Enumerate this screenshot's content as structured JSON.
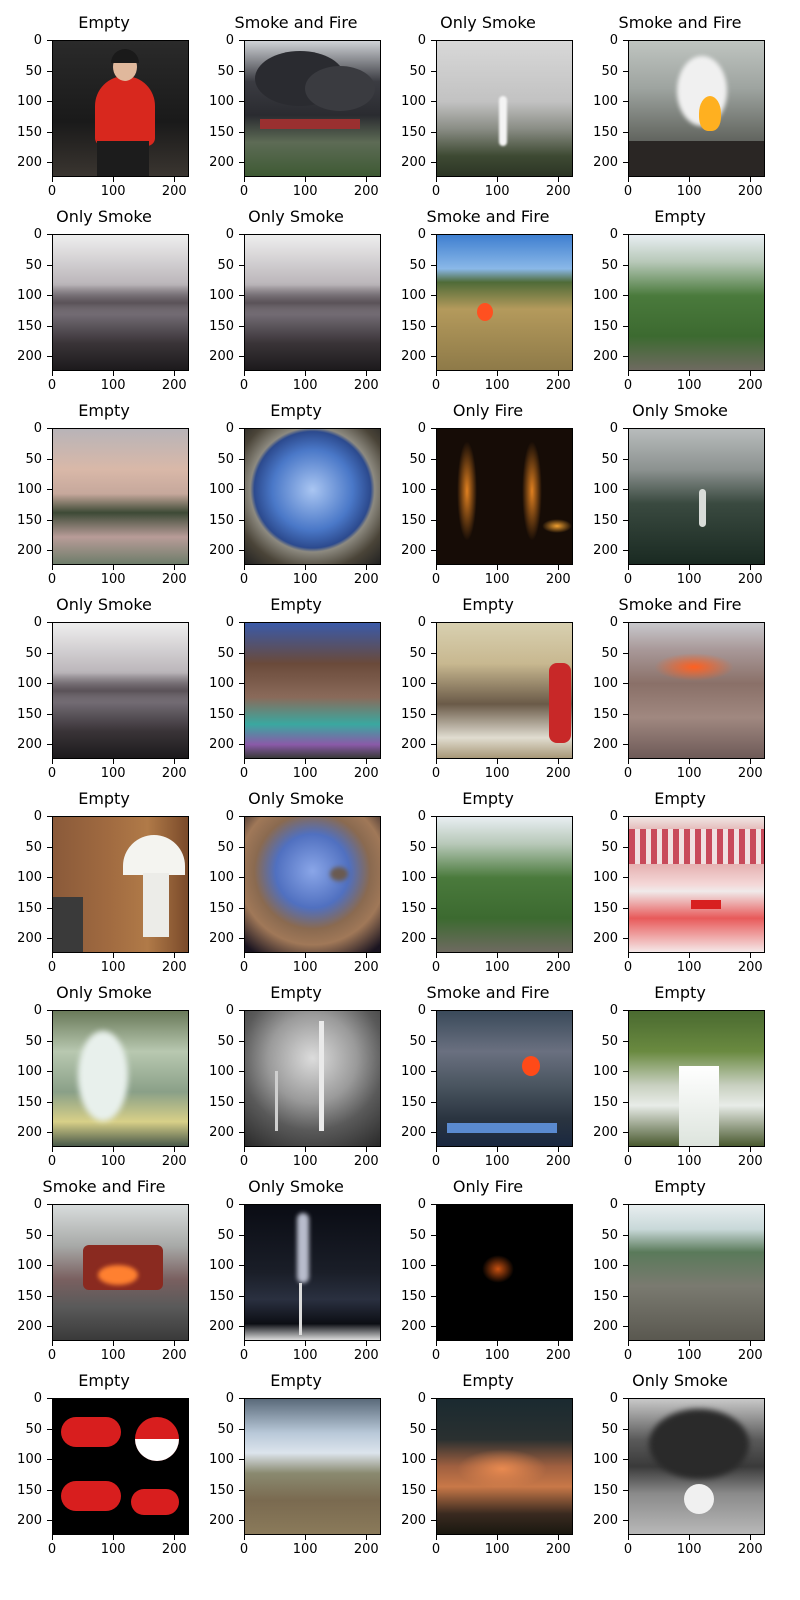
{
  "axis": {
    "yticks": [
      "0",
      "50",
      "100",
      "150",
      "200"
    ],
    "xticks": [
      "0",
      "100",
      "200"
    ]
  },
  "panels": [
    {
      "title": "Empty",
      "scene": "person-red"
    },
    {
      "title": "Smoke and Fire",
      "scene": "black-smoke"
    },
    {
      "title": "Only Smoke",
      "scene": "grey-smoke-hills"
    },
    {
      "title": "Smoke and Fire",
      "scene": "fire-street"
    },
    {
      "title": "Only Smoke",
      "scene": "mountains-grey"
    },
    {
      "title": "Only Smoke",
      "scene": "mountains-grey"
    },
    {
      "title": "Smoke and Fire",
      "scene": "grass-fire"
    },
    {
      "title": "Empty",
      "scene": "green-hills"
    },
    {
      "title": "Empty",
      "scene": "sunset-lake"
    },
    {
      "title": "Empty",
      "scene": "fisheye-sky"
    },
    {
      "title": "Only Fire",
      "scene": "dark-fire"
    },
    {
      "title": "Only Smoke",
      "scene": "dark-forest-smoke"
    },
    {
      "title": "Only Smoke",
      "scene": "mountains-grey"
    },
    {
      "title": "Empty",
      "scene": "crowd"
    },
    {
      "title": "Empty",
      "scene": "classroom"
    },
    {
      "title": "Smoke and Fire",
      "scene": "rubble-fire"
    },
    {
      "title": "Empty",
      "scene": "lamp-room"
    },
    {
      "title": "Only Smoke",
      "scene": "fisheye-land"
    },
    {
      "title": "Empty",
      "scene": "green-hills"
    },
    {
      "title": "Empty",
      "scene": "lipstick"
    },
    {
      "title": "Only Smoke",
      "scene": "white-smoke-green"
    },
    {
      "title": "Empty",
      "scene": "bw-tower"
    },
    {
      "title": "Smoke and Fire",
      "scene": "aerial-fire"
    },
    {
      "title": "Empty",
      "scene": "waterfall"
    },
    {
      "title": "Smoke and Fire",
      "scene": "bus-fire"
    },
    {
      "title": "Only Smoke",
      "scene": "night-chimney"
    },
    {
      "title": "Only Fire",
      "scene": "black-fire"
    },
    {
      "title": "Empty",
      "scene": "construction"
    },
    {
      "title": "Empty",
      "scene": "clouds-red"
    },
    {
      "title": "Empty",
      "scene": "landscape-sky"
    },
    {
      "title": "Empty",
      "scene": "orange-cloud"
    },
    {
      "title": "Only Smoke",
      "scene": "explosion-smoke"
    }
  ]
}
